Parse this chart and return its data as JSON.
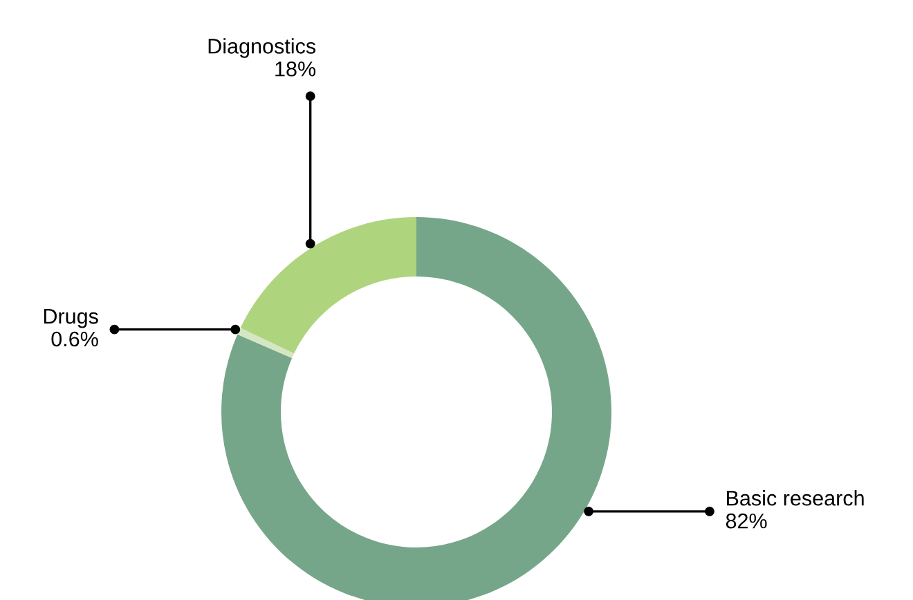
{
  "chart_data": {
    "type": "donut",
    "categories": [
      "Basic research",
      "Drugs",
      "Diagnostics"
    ],
    "values": [
      82,
      0.6,
      18
    ],
    "value_labels": [
      "82%",
      "0.6%",
      "18%"
    ],
    "colors": [
      "#76a68a",
      "#d4e6c3",
      "#afd47e"
    ],
    "legend": false
  }
}
